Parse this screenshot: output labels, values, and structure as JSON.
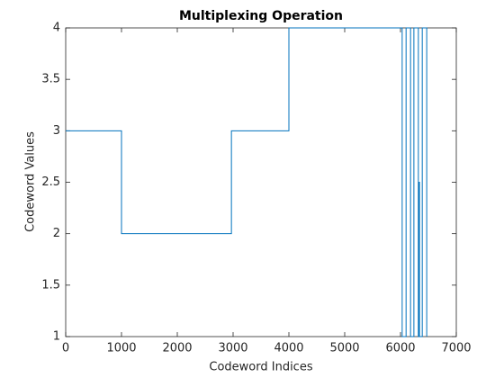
{
  "chart_data": {
    "type": "line",
    "title": "Multiplexing Operation",
    "x_label": "Codeword Indices",
    "y_label": "Codeword Values",
    "x": [
      0,
      1000,
      1000,
      2970,
      2970,
      4000,
      4000,
      6030,
      6030,
      6100,
      6100,
      6180,
      6180,
      6240,
      6240,
      6320,
      6320,
      6330,
      6330,
      6340,
      6340,
      6390,
      6390,
      6470,
      6470
    ],
    "series": [
      {
        "color": "#0072bd",
        "values": [
          3,
          3,
          2,
          2,
          3,
          3,
          4,
          4,
          1,
          1,
          4,
          4,
          1,
          1,
          4,
          4,
          1,
          1,
          2.5,
          2.5,
          1,
          1,
          4,
          4,
          1
        ]
      }
    ],
    "xlim": [
      0,
      7000
    ],
    "xticks": [
      0,
      1000,
      2000,
      3000,
      4000,
      5000,
      6000,
      7000
    ],
    "ylim": [
      1,
      4
    ],
    "yticks": [
      1,
      1.5,
      2,
      2.5,
      3,
      3.5,
      4
    ]
  }
}
